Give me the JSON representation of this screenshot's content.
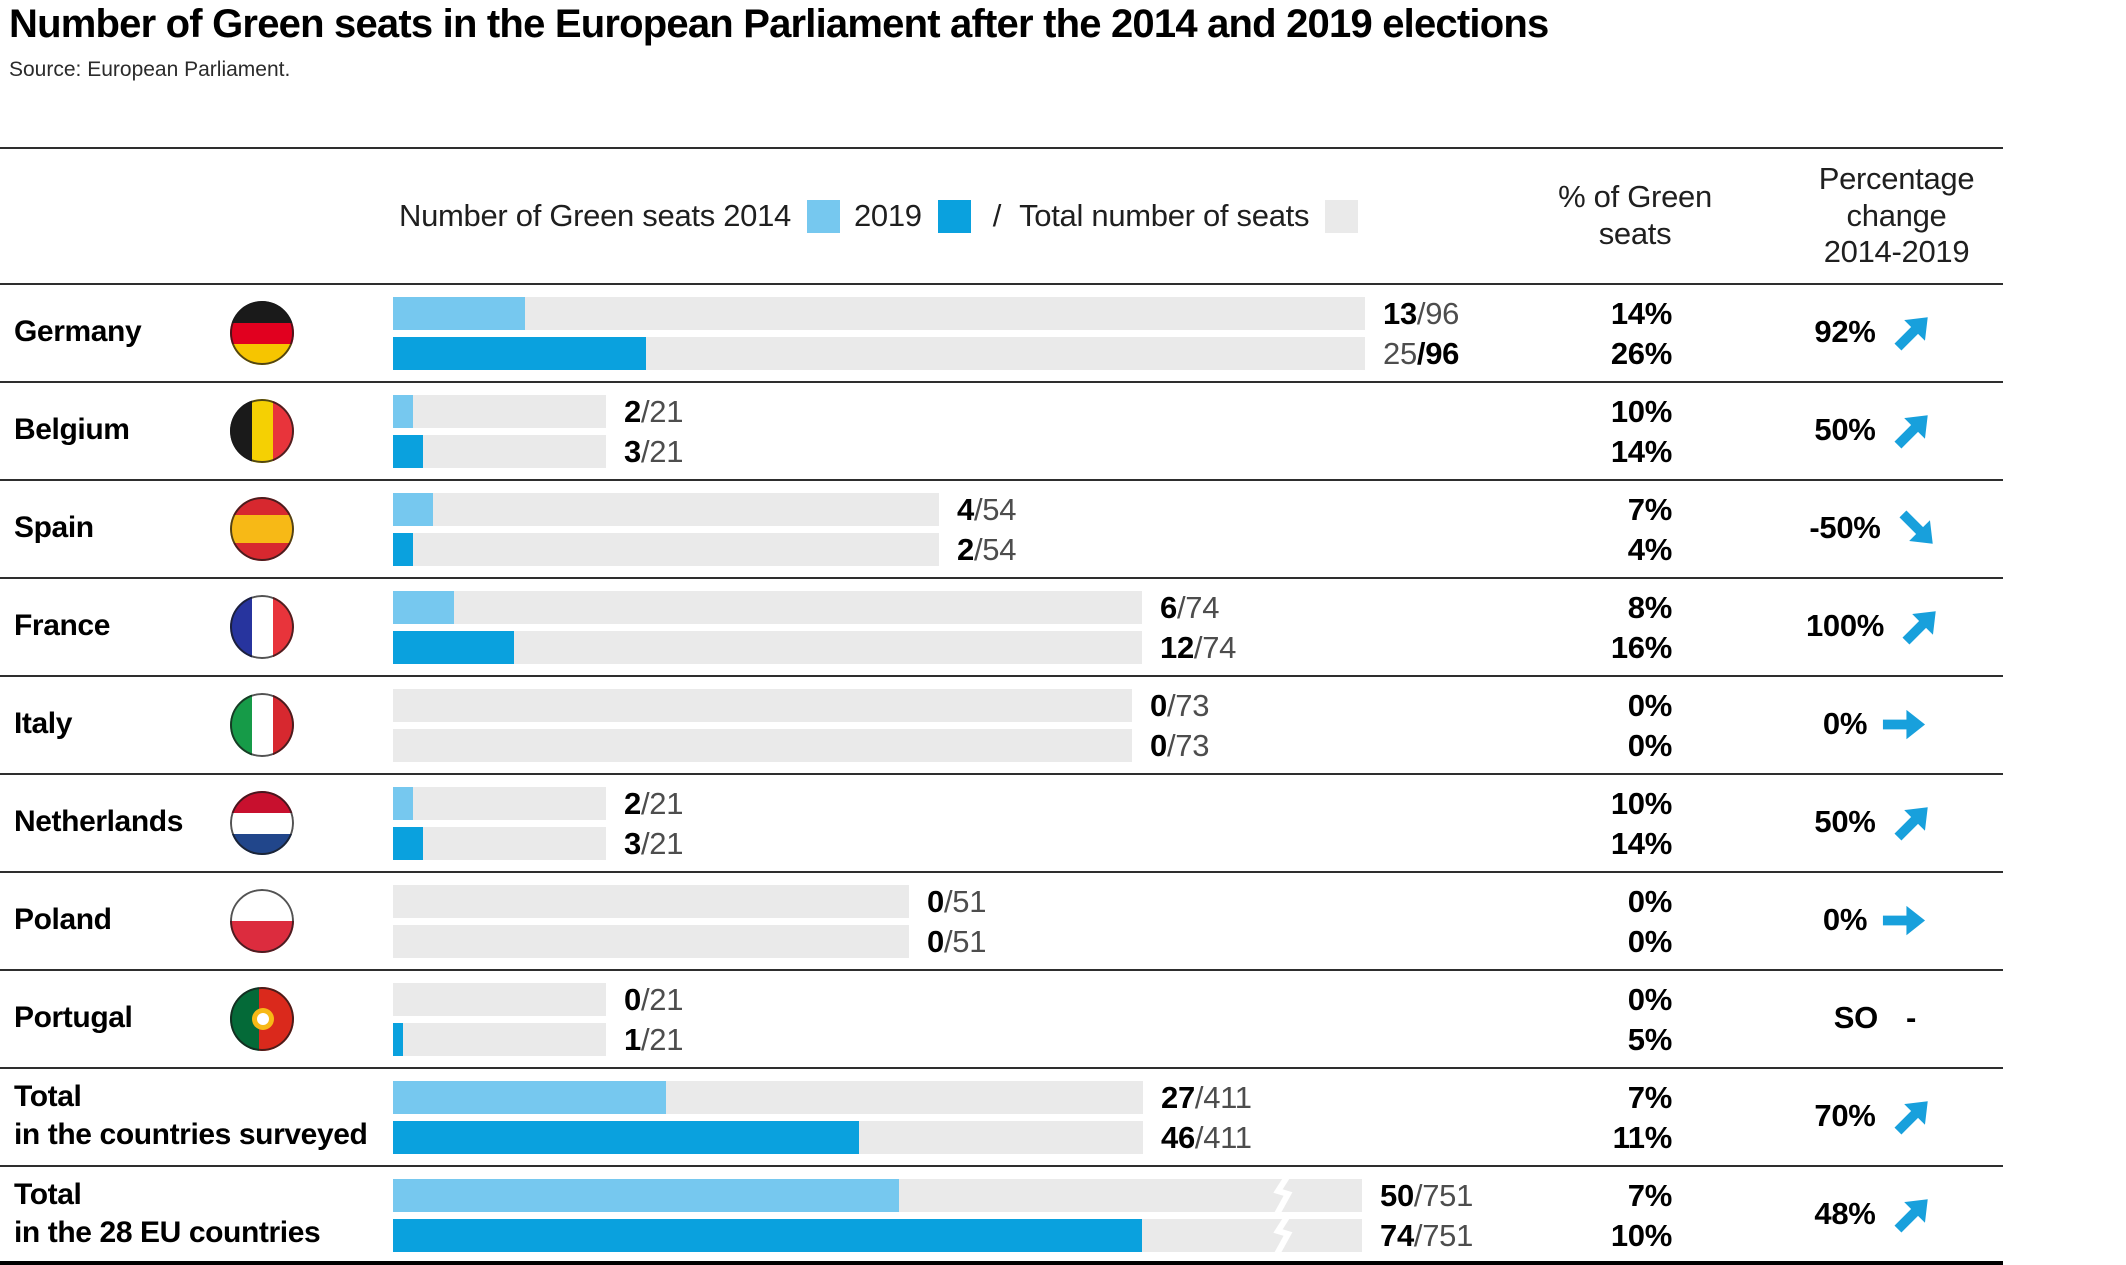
{
  "title": "Number of Green seats in the European Parliament after the 2014 and 2019 elections",
  "source": "Source: European Parliament.",
  "legend": {
    "label_2014": "Number of Green seats 2014",
    "label_2019": "2019",
    "slash": "/",
    "label_total": "Total number of seats"
  },
  "columns": {
    "pct_header": "% of Green\nseats",
    "change_header": "Percentage\nchange\n2014-2019"
  },
  "colors": {
    "bar_2014": "#76C8EF",
    "bar_2019": "#0AA1DE",
    "bar_total": "#EAEAEA",
    "arrow": "#18A0DC"
  },
  "rows": [
    {
      "country": [
        "Germany"
      ],
      "flag": "germany",
      "seats2014": 13,
      "seats2019": 25,
      "total": 96,
      "label2014": [
        {
          "t": "13",
          "b": true
        },
        {
          "t": "/96",
          "b": false
        }
      ],
      "label2019": [
        {
          "t": "25",
          "b": false
        },
        {
          "t": "/96",
          "b": true
        }
      ],
      "pct2014": "14%",
      "pct2019": "26%",
      "change": "92%",
      "arrow": "up"
    },
    {
      "country": [
        "Belgium"
      ],
      "flag": "belgium",
      "seats2014": 2,
      "seats2019": 3,
      "total": 21,
      "label2014": [
        {
          "t": "2",
          "b": true
        },
        {
          "t": "/21",
          "b": false
        }
      ],
      "label2019": [
        {
          "t": "3",
          "b": true
        },
        {
          "t": "/21",
          "b": false
        }
      ],
      "pct2014": "10%",
      "pct2019": "14%",
      "change": "50%",
      "arrow": "up"
    },
    {
      "country": [
        "Spain"
      ],
      "flag": "spain",
      "seats2014": 4,
      "seats2019": 2,
      "total": 54,
      "label2014": [
        {
          "t": "4",
          "b": true
        },
        {
          "t": "/54",
          "b": false
        }
      ],
      "label2019": [
        {
          "t": "2",
          "b": true
        },
        {
          "t": "/54",
          "b": false
        }
      ],
      "pct2014": "7%",
      "pct2019": "4%",
      "change": "-50%",
      "arrow": "down"
    },
    {
      "country": [
        "France"
      ],
      "flag": "france",
      "seats2014": 6,
      "seats2019": 12,
      "total": 74,
      "label2014": [
        {
          "t": "6",
          "b": true
        },
        {
          "t": "/74",
          "b": false
        }
      ],
      "label2019": [
        {
          "t": "12",
          "b": true
        },
        {
          "t": "/74",
          "b": false
        }
      ],
      "pct2014": "8%",
      "pct2019": "16%",
      "change": "100%",
      "arrow": "up"
    },
    {
      "country": [
        "Italy"
      ],
      "flag": "italy",
      "seats2014": 0,
      "seats2019": 0,
      "total": 73,
      "label2014": [
        {
          "t": "0",
          "b": true
        },
        {
          "t": "/73",
          "b": false
        }
      ],
      "label2019": [
        {
          "t": "0",
          "b": true
        },
        {
          "t": "/73",
          "b": false
        }
      ],
      "pct2014": "0%",
      "pct2019": "0%",
      "change": "0%",
      "arrow": "right"
    },
    {
      "country": [
        "Netherlands"
      ],
      "flag": "netherlands",
      "seats2014": 2,
      "seats2019": 3,
      "total": 21,
      "label2014": [
        {
          "t": "2",
          "b": true
        },
        {
          "t": "/21",
          "b": false
        }
      ],
      "label2019": [
        {
          "t": "3",
          "b": true
        },
        {
          "t": "/21",
          "b": false
        }
      ],
      "pct2014": "10%",
      "pct2019": "14%",
      "change": "50%",
      "arrow": "up"
    },
    {
      "country": [
        "Poland"
      ],
      "flag": "poland",
      "seats2014": 0,
      "seats2019": 0,
      "total": 51,
      "label2014": [
        {
          "t": "0",
          "b": true
        },
        {
          "t": "/51",
          "b": false
        }
      ],
      "label2019": [
        {
          "t": "0",
          "b": true
        },
        {
          "t": "/51",
          "b": false
        }
      ],
      "pct2014": "0%",
      "pct2019": "0%",
      "change": "0%",
      "arrow": "right"
    },
    {
      "country": [
        "Portugal"
      ],
      "flag": "portugal",
      "seats2014": 0,
      "seats2019": 1,
      "total": 21,
      "label2014": [
        {
          "t": "0",
          "b": true
        },
        {
          "t": "/21",
          "b": false
        }
      ],
      "label2019": [
        {
          "t": "1",
          "b": true
        },
        {
          "t": "/21",
          "b": false
        }
      ],
      "pct2014": "0%",
      "pct2019": "5%",
      "change": "SO",
      "arrow": "none",
      "change_suffix": "-"
    },
    {
      "country": [
        "Total",
        "in the countries surveyed"
      ],
      "flag": null,
      "seats2014": 27,
      "seats2019": 46,
      "total": 411,
      "label2014": [
        {
          "t": "27",
          "b": true
        },
        {
          "t": "/411",
          "b": false
        }
      ],
      "label2019": [
        {
          "t": "46",
          "b": true
        },
        {
          "t": "/411",
          "b": false
        }
      ],
      "pct2014": "7%",
      "pct2019": "11%",
      "change": "70%",
      "arrow": "up"
    },
    {
      "country": [
        "Total",
        "in the 28 EU countries"
      ],
      "flag": null,
      "seats2014": 50,
      "seats2019": 74,
      "total": 751,
      "label2014": [
        {
          "t": "50",
          "b": true
        },
        {
          "t": "/751",
          "b": false
        }
      ],
      "label2019": [
        {
          "t": "74",
          "b": true
        },
        {
          "t": "/751",
          "b": false
        }
      ],
      "pct2014": "7%",
      "pct2019": "10%",
      "change": "48%",
      "arrow": "up"
    }
  ],
  "chart_data": {
    "type": "bar",
    "title": "Number of Green seats in the European Parliament after the 2014 and 2019 elections",
    "source": "Source: European Parliament.",
    "categories": [
      "Germany",
      "Belgium",
      "Spain",
      "France",
      "Italy",
      "Netherlands",
      "Poland",
      "Portugal",
      "Total in the countries surveyed",
      "Total in the 28 EU countries"
    ],
    "series": [
      {
        "name": "Number of Green seats 2014",
        "values": [
          13,
          2,
          4,
          6,
          0,
          2,
          0,
          0,
          27,
          50
        ]
      },
      {
        "name": "Number of Green seats 2019",
        "values": [
          25,
          3,
          2,
          12,
          0,
          3,
          0,
          1,
          46,
          74
        ]
      },
      {
        "name": "Total number of seats",
        "values": [
          96,
          21,
          54,
          74,
          73,
          21,
          51,
          21,
          411,
          751
        ]
      }
    ],
    "pct_of_green_seats_2014": [
      "14%",
      "10%",
      "7%",
      "8%",
      "0%",
      "10%",
      "0%",
      "0%",
      "7%",
      "7%"
    ],
    "pct_of_green_seats_2019": [
      "26%",
      "14%",
      "4%",
      "16%",
      "0%",
      "14%",
      "0%",
      "5%",
      "11%",
      "10%"
    ],
    "percentage_change_2014_2019": [
      "92%",
      "50%",
      "-50%",
      "100%",
      "0%",
      "50%",
      "0%",
      "SO",
      "70%",
      "48%"
    ],
    "legend_position": "top",
    "orientation": "horizontal",
    "grid": false,
    "notes": "Total-row background bars are truncated with a break mark; bar length scale is ~10.1px per seat"
  }
}
